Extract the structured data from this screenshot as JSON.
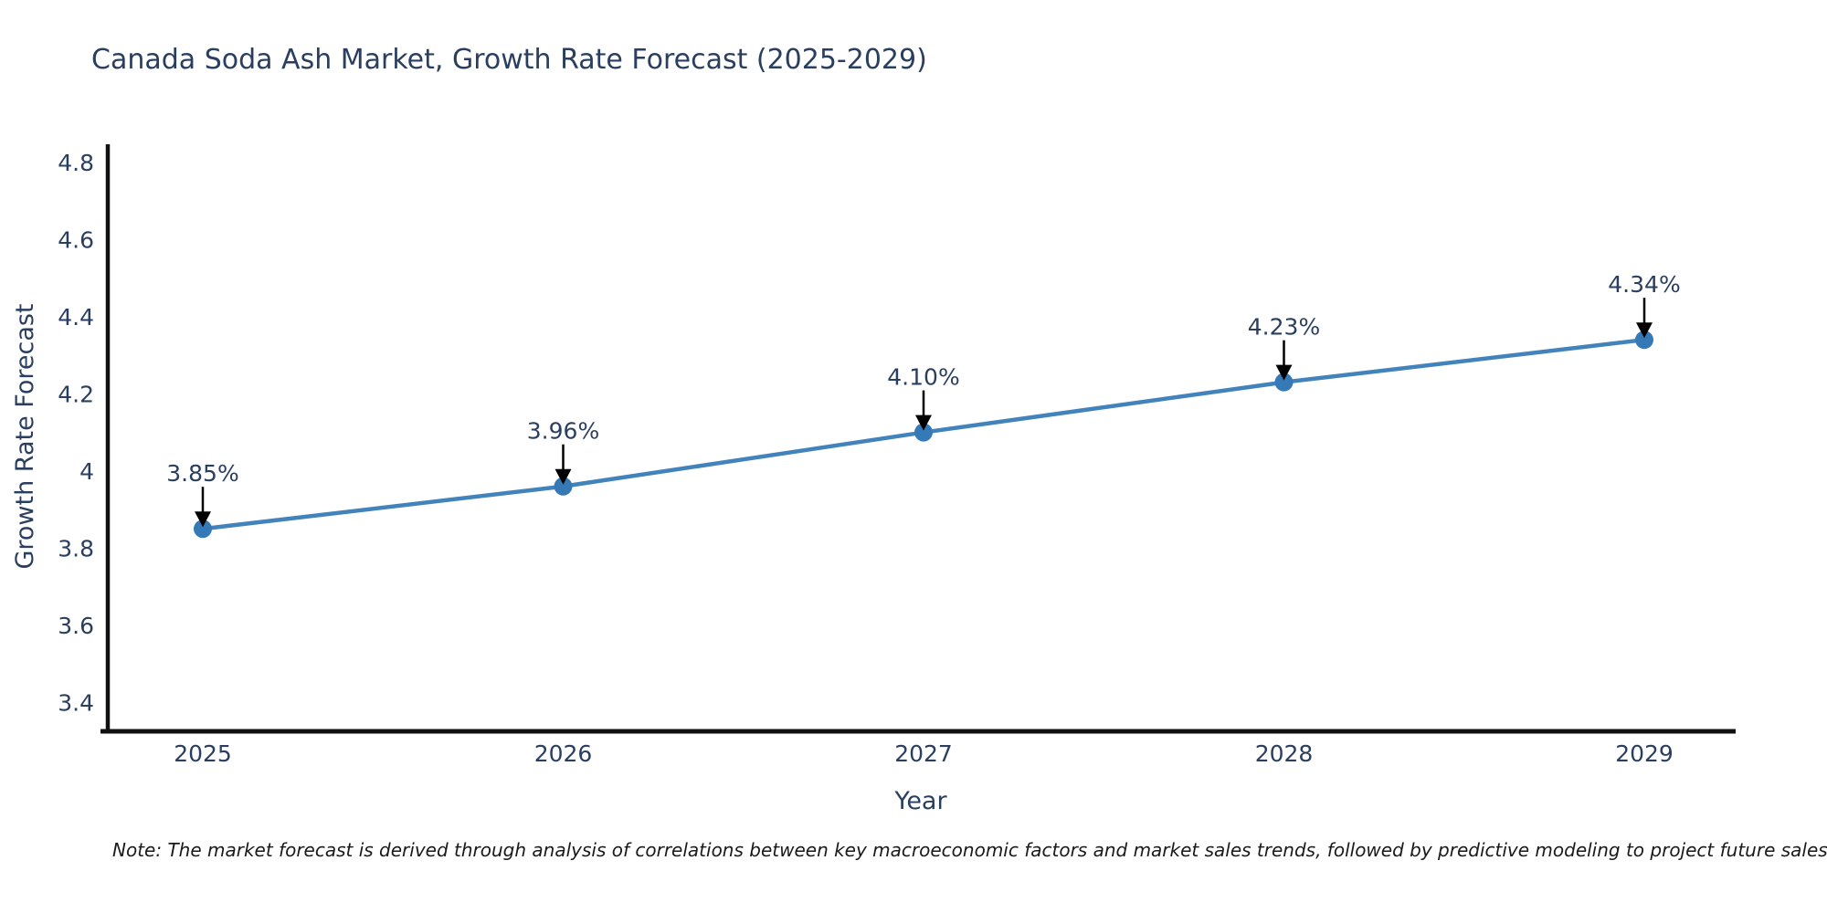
{
  "page": {
    "title": "Canada Soda Ash Market, Growth Rate Forecast (2025-2029)",
    "note": "Note: The market forecast is derived through analysis of correlations between key macroeconomic factors and market sales trends, followed by predictive modeling to project future sales"
  },
  "chart_data": {
    "type": "line",
    "title": "Canada Soda Ash Market, Growth Rate Forecast (2025-2029)",
    "xlabel": "Year",
    "ylabel": "Growth Rate Forecast",
    "categories": [
      "2025",
      "2026",
      "2027",
      "2028",
      "2029"
    ],
    "series": [
      {
        "name": "Growth Rate Forecast",
        "values": [
          3.85,
          3.96,
          4.1,
          4.23,
          4.34
        ]
      }
    ],
    "point_labels": [
      "3.85%",
      "3.96%",
      "4.10%",
      "4.23%",
      "4.34%"
    ],
    "yticks": [
      "3.4",
      "3.6",
      "3.8",
      "4",
      "4.2",
      "4.4",
      "4.6",
      "4.8"
    ],
    "ytick_values": [
      3.4,
      3.6,
      3.8,
      4.0,
      4.2,
      4.4,
      4.6,
      4.8
    ],
    "ylim": [
      3.325,
      4.847
    ],
    "grid": false,
    "legend_position": "none",
    "annotation_style": "arrow-down",
    "colors": {
      "line": "#4383bc",
      "marker": "#3679b7",
      "axis": "#111111",
      "text": "#2a3f5f",
      "arrow": "#000000",
      "background": "#ffffff"
    }
  }
}
